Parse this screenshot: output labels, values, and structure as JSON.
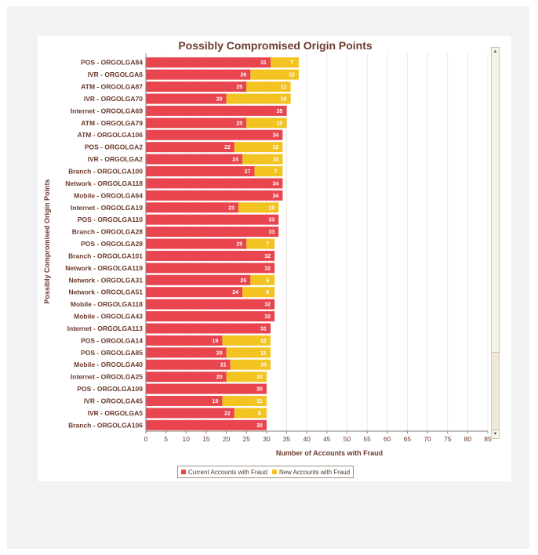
{
  "colors": {
    "current": "#e8454f",
    "new": "#f3c421"
  },
  "legend": {
    "current_label": "Current Accounts with Fraud",
    "new_label": "New Accounts with Fraud"
  },
  "scrollbar": {
    "up_icon": "up-arrow-icon",
    "down_icon": "down-arrow-icon"
  },
  "chart_data": {
    "type": "bar",
    "orientation": "horizontal",
    "stacked": true,
    "title": "Possibly Compromised Origin Points",
    "xlabel": "Number of Accounts with Fraud",
    "ylabel": "Possibly Compromised Origin Points",
    "xlim": [
      0,
      85
    ],
    "xticks": [
      "0",
      "5",
      "10",
      "15",
      "20",
      "25",
      "30",
      "35",
      "40",
      "45",
      "50",
      "55",
      "60",
      "65",
      "70",
      "75",
      "80",
      "85"
    ],
    "grid": "vertical",
    "legend_position": "bottom",
    "categories": [
      "POS - ORGOLGA84",
      "IVR - ORGOLGA6",
      "ATM - ORGOLGA87",
      "IVR - ORGOLGA70",
      "Internet - ORGOLGA69",
      "ATM - ORGOLGA79",
      "ATM - ORGOLGA106",
      "POS - ORGOLGA2",
      "IVR - ORGOLGA2",
      "Branch - ORGOLGA100",
      "Network - ORGOLGA118",
      "Mobile - ORGOLGA64",
      "Internet - ORGOLGA19",
      "POS - ORGOLGA110",
      "Branch - ORGOLGA28",
      "POS - ORGOLGA28",
      "Branch - ORGOLGA101",
      "Network - ORGOLGA119",
      "Network - ORGOLGA31",
      "Network - ORGOLGA51",
      "Mobile - ORGOLGA118",
      "Mobile - ORGOLGA43",
      "Internet - ORGOLGA113",
      "POS - ORGOLGA14",
      "POS - ORGOLGA85",
      "Mobile - ORGOLGA40",
      "Internet - ORGOLGA25",
      "POS - ORGOLGA109",
      "IVR - ORGOLGA45",
      "IVR - ORGOLGA5",
      "Branch - ORGOLGA106"
    ],
    "series": [
      {
        "name": "Current Accounts with Fraud",
        "values": [
          31,
          26,
          25,
          20,
          35,
          25,
          34,
          22,
          24,
          27,
          34,
          34,
          23,
          33,
          33,
          25,
          32,
          32,
          26,
          24,
          32,
          32,
          31,
          19,
          20,
          21,
          20,
          30,
          19,
          22,
          30
        ]
      },
      {
        "name": "New Accounts with Fraud",
        "values": [
          7,
          12,
          11,
          16,
          0,
          10,
          0,
          12,
          10,
          7,
          0,
          0,
          10,
          0,
          0,
          7,
          0,
          0,
          6,
          8,
          0,
          0,
          0,
          12,
          11,
          10,
          10,
          0,
          11,
          8,
          0
        ]
      }
    ]
  }
}
